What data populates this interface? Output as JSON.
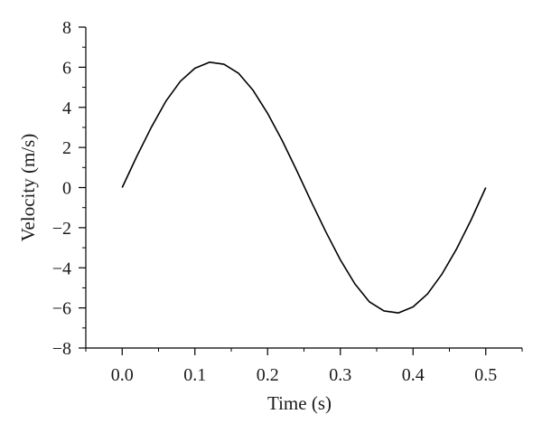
{
  "chart_data": {
    "type": "line",
    "xlabel": "Time (s)",
    "ylabel": "Velocity (m/s)",
    "xlim": [
      -0.05,
      0.55
    ],
    "ylim": [
      -8,
      8
    ],
    "xticks": [
      0.0,
      0.1,
      0.2,
      0.3,
      0.4,
      0.5
    ],
    "xtick_labels": [
      "0.0",
      "0.1",
      "0.2",
      "0.3",
      "0.4",
      "0.5"
    ],
    "yticks": [
      -8,
      -6,
      -4,
      -2,
      0,
      2,
      4,
      6,
      8
    ],
    "ytick_labels": [
      "−8",
      "−6",
      "−4",
      "−2",
      "0",
      "2",
      "4",
      "6",
      "8"
    ],
    "grid": false,
    "series": [
      {
        "color": "#000000",
        "x": [
          0.0,
          0.02,
          0.04,
          0.06,
          0.08,
          0.1,
          0.12,
          0.14,
          0.16,
          0.18,
          0.2,
          0.22,
          0.24,
          0.26,
          0.28,
          0.3,
          0.32,
          0.34,
          0.36,
          0.38,
          0.4,
          0.42,
          0.44,
          0.46,
          0.48,
          0.5
        ],
        "y": [
          0.0,
          1.55,
          3.0,
          4.3,
          5.3,
          5.95,
          6.25,
          6.15,
          5.7,
          4.85,
          3.7,
          2.35,
          0.85,
          -0.7,
          -2.2,
          -3.6,
          -4.8,
          -5.7,
          -6.15,
          -6.25,
          -5.95,
          -5.3,
          -4.3,
          -3.05,
          -1.6,
          0.0
        ]
      }
    ]
  }
}
